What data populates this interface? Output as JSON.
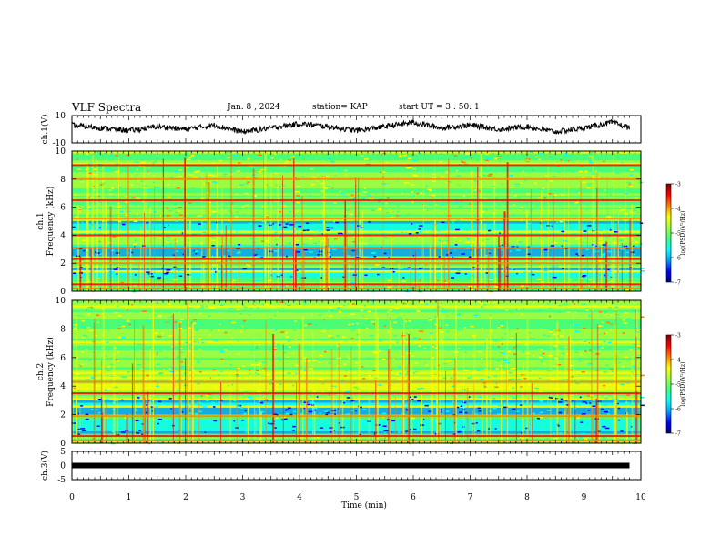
{
  "header": {
    "title": "VLF Spectra",
    "date": "Jan. 8 , 2024",
    "station": "station= KAP",
    "start": "start UT = 3 : 50: 1"
  },
  "colors": {
    "colormap": [
      "#000080",
      "#0000ff",
      "#00a0ff",
      "#00ffff",
      "#40ff80",
      "#a0ff40",
      "#ffff00",
      "#ff8000",
      "#ff0000",
      "#800000"
    ],
    "trace": "#000000",
    "frame": "#000000"
  },
  "chart_data": [
    {
      "type": "line",
      "panel": "ch1-waveform",
      "ylabel": "ch.1(V)",
      "ylim": [
        -10,
        10
      ],
      "yticks": [
        "10",
        "-10"
      ],
      "xlim": [
        0,
        10
      ],
      "x": [
        0,
        0.5,
        1,
        1.5,
        2,
        2.5,
        3,
        3.5,
        4,
        4.5,
        5,
        5.5,
        6,
        6.5,
        7,
        7.5,
        8,
        8.5,
        9,
        9.5,
        9.8
      ],
      "y": [
        3,
        1,
        -1,
        2,
        0,
        3,
        -2,
        1,
        4,
        2,
        -1,
        2,
        5,
        1,
        3,
        0,
        2,
        -2,
        1,
        5,
        1
      ]
    },
    {
      "type": "heatmap",
      "panel": "ch1-spectrogram",
      "ylabel": "ch.1 Frequency (kHz)",
      "yticks": [
        "0",
        "2",
        "4",
        "6",
        "8",
        "10"
      ],
      "ylim": [
        0,
        10
      ],
      "xlim": [
        0,
        10
      ],
      "z_range": [
        -7,
        -3
      ],
      "colorbar_label": "log(PSD)(V²/Hz)",
      "colorbar_ticks": [
        "-3",
        "-4",
        "-5",
        "-6",
        "-7"
      ],
      "bright_lines_khz": [
        0.2,
        0.5,
        2.0,
        2.3,
        3.1,
        4.0,
        5.2,
        6.5,
        8.0,
        9.0
      ],
      "quiet_bands_khz": [
        [
          2.4,
          3.4
        ],
        [
          4.1,
          5.0
        ],
        [
          1.0,
          1.8
        ]
      ]
    },
    {
      "type": "heatmap",
      "panel": "ch2-spectrogram",
      "ylabel": "ch.2 Frequency (kHz)",
      "yticks": [
        "0",
        "2",
        "4",
        "6",
        "8",
        "10"
      ],
      "ylim": [
        0,
        10
      ],
      "xlim": [
        0,
        10
      ],
      "z_range": [
        -7,
        -3
      ],
      "colorbar_label": "log(PSD)(V²/Hz)",
      "colorbar_ticks": [
        "-3",
        "-4",
        "-5",
        "-6",
        "-7"
      ],
      "bright_lines_khz": [
        0.2,
        0.5,
        1.9,
        3.5,
        4.3
      ],
      "quiet_bands_khz": [
        [
          2.0,
          3.3
        ],
        [
          0.6,
          1.8
        ]
      ]
    },
    {
      "type": "line",
      "panel": "ch3-waveform",
      "ylabel": "ch.3(V)",
      "ylim": [
        -5,
        5
      ],
      "yticks": [
        "5",
        "0",
        "-5"
      ],
      "xlim": [
        0,
        10
      ],
      "x": [
        0,
        9.8
      ],
      "y": [
        0,
        0
      ]
    }
  ],
  "xaxis": {
    "label": "Time (min)",
    "ticks": [
      "0",
      "1",
      "2",
      "3",
      "4",
      "5",
      "6",
      "7",
      "8",
      "9",
      "10"
    ]
  }
}
